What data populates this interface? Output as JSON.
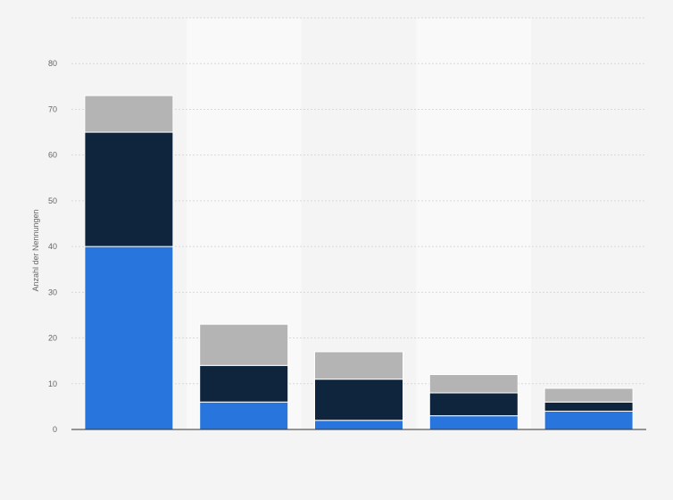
{
  "chart_data": {
    "type": "bar",
    "stacked": true,
    "categories": [
      "",
      "",
      "",
      "",
      ""
    ],
    "series": [
      {
        "values": [
          40,
          6,
          2,
          3,
          4
        ],
        "color": "#2876dd"
      },
      {
        "values": [
          25,
          8,
          9,
          5,
          2
        ],
        "color": "#0f253d"
      },
      {
        "values": [
          8,
          9,
          6,
          4,
          3
        ],
        "color": "#b4b4b4"
      }
    ],
    "title": "",
    "xlabel": "",
    "ylabel": "Anzahl der Nennungen",
    "ylim": [
      0,
      90
    ],
    "yticks": [
      0,
      10,
      20,
      30,
      40,
      50,
      60,
      70,
      80
    ],
    "grid": true,
    "legend": "none",
    "colors": {
      "background": "#f4f4f4",
      "band": "#f9f9f9",
      "gridline": "#d9d9d9",
      "baseline": "#333333"
    }
  }
}
